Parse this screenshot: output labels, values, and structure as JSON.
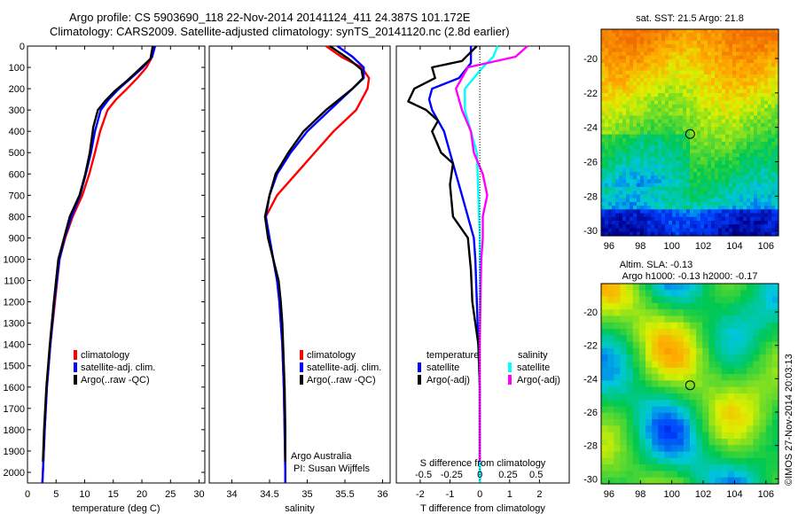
{
  "title_line1": "Argo profile: CS 5903690_118 22-Nov-2014 20141124_411 24.387S 101.172E",
  "title_line2": "Climatology: CARS2009. Satellite-adjusted climatology: synTS_20141120.nc (2.8d earlier)",
  "colors": {
    "red": "#ff0000",
    "blue": "#0000ff",
    "black": "#000000",
    "cyan": "#00ffff",
    "magenta": "#ff00ff"
  },
  "chart_data": [
    {
      "type": "line",
      "id": "temperature",
      "xlabel": "temperature (deg C)",
      "ylabel": "",
      "xlim": [
        0,
        31
      ],
      "ylim": [
        2050,
        0
      ],
      "xticks": [
        0,
        5,
        10,
        15,
        20,
        25,
        30
      ],
      "yticks": [
        0,
        100,
        200,
        300,
        400,
        500,
        600,
        700,
        800,
        900,
        1000,
        1100,
        1200,
        1300,
        1400,
        1500,
        1600,
        1700,
        1800,
        1900,
        2000
      ],
      "legend": [
        "climatology",
        "satellite-adj. clim.",
        "Argo(..raw -QC)"
      ],
      "series": [
        {
          "name": "climatology",
          "color": "red",
          "points": [
            [
              22,
              0
            ],
            [
              21.8,
              50
            ],
            [
              20.8,
              100
            ],
            [
              19.2,
              150
            ],
            [
              17.4,
              200
            ],
            [
              15.5,
              250
            ],
            [
              14,
              300
            ],
            [
              12.7,
              400
            ],
            [
              11.8,
              500
            ],
            [
              10.8,
              600
            ],
            [
              9.6,
              700
            ],
            [
              7.9,
              800
            ],
            [
              6.6,
              900
            ],
            [
              5.6,
              1000
            ],
            [
              4.8,
              1200
            ],
            [
              4,
              1400
            ],
            [
              3.4,
              1600
            ],
            [
              3,
              1800
            ],
            [
              2.7,
              2000
            ],
            [
              2.6,
              2050
            ]
          ]
        },
        {
          "name": "satellite-adj. clim.",
          "color": "blue",
          "points": [
            [
              22.3,
              0
            ],
            [
              21.8,
              50
            ],
            [
              20.2,
              100
            ],
            [
              18.1,
              150
            ],
            [
              16,
              200
            ],
            [
              14.2,
              250
            ],
            [
              12.8,
              300
            ],
            [
              11.8,
              400
            ],
            [
              11.1,
              500
            ],
            [
              10.2,
              600
            ],
            [
              9.2,
              700
            ],
            [
              7.7,
              800
            ],
            [
              6.5,
              900
            ],
            [
              5.6,
              1000
            ],
            [
              4.7,
              1200
            ],
            [
              4,
              1400
            ],
            [
              3.4,
              1600
            ],
            [
              3,
              1800
            ],
            [
              2.7,
              2000
            ],
            [
              2.6,
              2050
            ]
          ]
        },
        {
          "name": "Argo(..raw -QC)",
          "color": "black",
          "points": [
            [
              21.9,
              0
            ],
            [
              21.5,
              60
            ],
            [
              19.5,
              110
            ],
            [
              17.5,
              160
            ],
            [
              15.3,
              210
            ],
            [
              13.5,
              260
            ],
            [
              12.3,
              300
            ],
            [
              11.5,
              380
            ],
            [
              10.9,
              500
            ],
            [
              10.1,
              600
            ],
            [
              9.1,
              700
            ],
            [
              7.4,
              800
            ],
            [
              6.4,
              900
            ],
            [
              5.4,
              1000
            ],
            [
              4.6,
              1200
            ],
            [
              3.9,
              1400
            ],
            [
              3.3,
              1600
            ],
            [
              2.9,
              1800
            ],
            [
              2.7,
              1950
            ]
          ]
        }
      ]
    },
    {
      "type": "line",
      "id": "salinity",
      "xlabel": "salinity",
      "ylabel": "",
      "xlim": [
        33.7,
        36.1
      ],
      "ylim": [
        2050,
        0
      ],
      "xticks": [
        34,
        34.5,
        35,
        35.5,
        36
      ],
      "xtick_labels": [
        "34",
        "34.5",
        "35",
        "35.5",
        "36"
      ],
      "legend": [
        "climatology",
        "satellite-adj. clim.",
        "Argo(..raw -QC)"
      ],
      "annotations": [
        "Argo Australia",
        "PI: Susan Wijffels"
      ],
      "series": [
        {
          "name": "climatology",
          "color": "red",
          "points": [
            [
              35.25,
              0
            ],
            [
              35.45,
              50
            ],
            [
              35.72,
              100
            ],
            [
              35.82,
              150
            ],
            [
              35.8,
              200
            ],
            [
              35.65,
              300
            ],
            [
              35.35,
              400
            ],
            [
              35.1,
              500
            ],
            [
              34.85,
              600
            ],
            [
              34.6,
              700
            ],
            [
              34.45,
              800
            ],
            [
              34.48,
              900
            ],
            [
              34.55,
              1000
            ],
            [
              34.6,
              1100
            ],
            [
              34.63,
              1200
            ],
            [
              34.65,
              1300
            ],
            [
              34.67,
              1400
            ],
            [
              34.69,
              1600
            ],
            [
              34.7,
              1800
            ],
            [
              34.71,
              2000
            ],
            [
              34.71,
              2050
            ]
          ]
        },
        {
          "name": "satellite-adj. clim.",
          "color": "blue",
          "points": [
            [
              35.4,
              0
            ],
            [
              35.6,
              50
            ],
            [
              35.75,
              100
            ],
            [
              35.75,
              150
            ],
            [
              35.6,
              200
            ],
            [
              35.3,
              300
            ],
            [
              35,
              400
            ],
            [
              34.78,
              500
            ],
            [
              34.6,
              600
            ],
            [
              34.5,
              700
            ],
            [
              34.45,
              800
            ],
            [
              34.5,
              900
            ],
            [
              34.55,
              1000
            ],
            [
              34.6,
              1100
            ],
            [
              34.63,
              1200
            ],
            [
              34.65,
              1300
            ],
            [
              34.67,
              1400
            ],
            [
              34.69,
              1600
            ],
            [
              34.7,
              1800
            ],
            [
              34.71,
              2000
            ],
            [
              34.71,
              2050
            ]
          ]
        },
        {
          "name": "Argo(..raw -QC)",
          "color": "black",
          "points": [
            [
              35.3,
              0
            ],
            [
              35.55,
              60
            ],
            [
              35.72,
              110
            ],
            [
              35.74,
              150
            ],
            [
              35.6,
              200
            ],
            [
              35.25,
              300
            ],
            [
              34.95,
              400
            ],
            [
              34.75,
              500
            ],
            [
              34.58,
              600
            ],
            [
              34.5,
              700
            ],
            [
              34.44,
              800
            ],
            [
              34.48,
              900
            ],
            [
              34.55,
              1000
            ],
            [
              34.62,
              1100
            ],
            [
              34.65,
              1200
            ],
            [
              34.67,
              1300
            ],
            [
              34.68,
              1400
            ],
            [
              34.7,
              1600
            ],
            [
              34.71,
              1800
            ],
            [
              34.71,
              1950
            ]
          ]
        }
      ]
    },
    {
      "type": "line",
      "id": "difference",
      "xlabel": "T difference from climatology",
      "top_label": "S difference from climatology",
      "xlim": [
        -2.8,
        3
      ],
      "ylim": [
        2050,
        0
      ],
      "xticks": [
        -2,
        -1,
        0,
        1,
        2
      ],
      "sticks_labels": [
        "-0.5",
        "-0.25",
        "0",
        "0.25",
        "0.5"
      ],
      "legend_titles": [
        "temperature",
        "salinity"
      ],
      "legend_temperature": [
        "satellite",
        "Argo(-adj)"
      ],
      "legend_salinity": [
        "satellite",
        "Argo(-adj)"
      ],
      "series": [
        {
          "name": "temperature satellite",
          "color": "blue",
          "points": [
            [
              -0.3,
              0
            ],
            [
              -0.3,
              80
            ],
            [
              -0.7,
              150
            ],
            [
              -1.6,
              200
            ],
            [
              -1.7,
              250
            ],
            [
              -1.6,
              300
            ],
            [
              -1.2,
              400
            ],
            [
              -1,
              500
            ],
            [
              -0.8,
              600
            ],
            [
              -0.6,
              700
            ],
            [
              -0.4,
              800
            ],
            [
              -0.2,
              900
            ],
            [
              -0.15,
              1000
            ],
            [
              -0.1,
              1200
            ],
            [
              -0.05,
              1400
            ],
            [
              0,
              1600
            ],
            [
              0,
              1800
            ],
            [
              0,
              2050
            ]
          ]
        },
        {
          "name": "temperature Argo(-adj)",
          "color": "black",
          "points": [
            [
              -0.1,
              0
            ],
            [
              -0.6,
              70
            ],
            [
              -1.6,
              100
            ],
            [
              -1.5,
              150
            ],
            [
              -2.2,
              200
            ],
            [
              -2.4,
              260
            ],
            [
              -1.8,
              300
            ],
            [
              -1.4,
              350
            ],
            [
              -1.6,
              400
            ],
            [
              -1.3,
              500
            ],
            [
              -0.9,
              550
            ],
            [
              -1,
              650
            ],
            [
              -0.9,
              800
            ],
            [
              -0.4,
              900
            ],
            [
              -0.3,
              1050
            ],
            [
              -0.25,
              1200
            ],
            [
              -0.05,
              1400
            ],
            [
              0,
              1600
            ],
            [
              0,
              1800
            ],
            [
              0,
              1950
            ]
          ]
        },
        {
          "name": "salinity satellite",
          "color": "cyan",
          "points": [
            [
              0.6,
              0
            ],
            [
              0.45,
              50
            ],
            [
              0.1,
              100
            ],
            [
              -0.5,
              200
            ],
            [
              -0.5,
              300
            ],
            [
              -0.3,
              400
            ],
            [
              -0.1,
              500
            ],
            [
              -0.05,
              700
            ],
            [
              0,
              900
            ],
            [
              0,
              1100
            ],
            [
              0,
              1400
            ],
            [
              0,
              1800
            ],
            [
              0,
              2050
            ]
          ]
        },
        {
          "name": "salinity Argo(-adj)",
          "color": "magenta",
          "points": [
            [
              1.6,
              0
            ],
            [
              1.2,
              50
            ],
            [
              -0.4,
              100
            ],
            [
              -0.8,
              200
            ],
            [
              -0.6,
              300
            ],
            [
              -0.3,
              400
            ],
            [
              -0.2,
              500
            ],
            [
              0.1,
              600
            ],
            [
              0.25,
              700
            ],
            [
              0.1,
              800
            ],
            [
              0.1,
              900
            ],
            [
              0.05,
              1000
            ],
            [
              0.02,
              1200
            ],
            [
              0,
              1400
            ],
            [
              0,
              1800
            ],
            [
              0,
              1950
            ]
          ]
        }
      ]
    },
    {
      "type": "heatmap",
      "id": "sst",
      "title": "sat. SST: 21.5  Argo: 21.8",
      "xticks": [
        96,
        98,
        100,
        102,
        104,
        106
      ],
      "yticks": [
        -20,
        -22,
        -24,
        -26,
        -28,
        -30
      ],
      "xlim": [
        95.5,
        106.8
      ],
      "ylim": [
        -30.3,
        -18.3
      ],
      "marker": [
        101.17,
        -24.39
      ]
    },
    {
      "type": "heatmap",
      "id": "sla",
      "title_line1": "Altim. SLA: -0.13",
      "title_line2": "Argo h1000: -0.13  h2000: -0.17",
      "xticks": [
        96,
        98,
        100,
        102,
        104,
        106
      ],
      "yticks": [
        -20,
        -22,
        -24,
        -26,
        -28,
        -30
      ],
      "xlim": [
        95.5,
        106.8
      ],
      "ylim": [
        -30.3,
        -18.3
      ],
      "marker": [
        101.17,
        -24.39
      ]
    }
  ],
  "credit": "©IMOS 27-Nov-2014 20:03:13"
}
